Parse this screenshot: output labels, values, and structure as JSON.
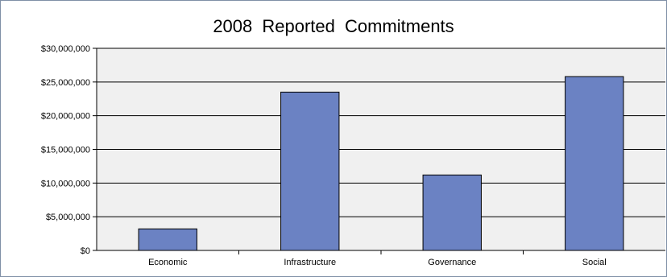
{
  "chart_data": {
    "type": "bar",
    "title": "2008 Reported Commitments",
    "categories": [
      "Economic",
      "Infrastructure",
      "Governance",
      "Social"
    ],
    "values": [
      3200000,
      23500000,
      11200000,
      25800000
    ],
    "ylim": [
      0,
      30000000
    ],
    "yticks": [
      "$0",
      "$5,000,000",
      "$10,000,000",
      "$15,000,000",
      "$20,000,000",
      "$25,000,000",
      "$30,000,000"
    ],
    "ytick_values": [
      0,
      5000000,
      10000000,
      15000000,
      20000000,
      25000000,
      30000000
    ],
    "grid": true,
    "colors": {
      "bar_fill": "#6b82c3",
      "bar_stroke": "#000000",
      "plot_bg": "#f0f0f0",
      "grid": "#000000"
    }
  }
}
